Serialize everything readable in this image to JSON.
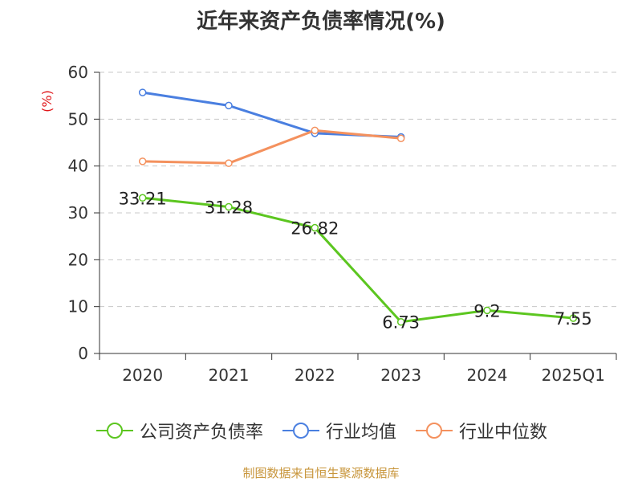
{
  "chart_data": {
    "type": "line",
    "title": "近年来资产负债率情况(%)",
    "ylabel": "(%)",
    "xlabel": "",
    "categories": [
      "2020",
      "2021",
      "2022",
      "2023",
      "2024",
      "2025Q1"
    ],
    "ylim": [
      0,
      60
    ],
    "yticks": [
      0,
      10,
      20,
      30,
      40,
      50,
      60
    ],
    "grid": true,
    "legend_position": "bottom",
    "series": [
      {
        "name": "公司资产负债率",
        "color": "#5cc620",
        "values": [
          33.21,
          31.28,
          26.82,
          6.73,
          9.2,
          7.55
        ],
        "labels": [
          "33.21",
          "31.28",
          "26.82",
          "6.73",
          "9.2",
          "7.55"
        ]
      },
      {
        "name": "行业均值",
        "color": "#4a7fe0",
        "values": [
          55.7,
          52.9,
          47.0,
          46.2,
          null,
          null
        ]
      },
      {
        "name": "行业中位数",
        "color": "#f4915e",
        "values": [
          41.0,
          40.6,
          47.6,
          45.9,
          null,
          null
        ]
      }
    ]
  },
  "source": "制图数据来自恒生聚源数据库"
}
